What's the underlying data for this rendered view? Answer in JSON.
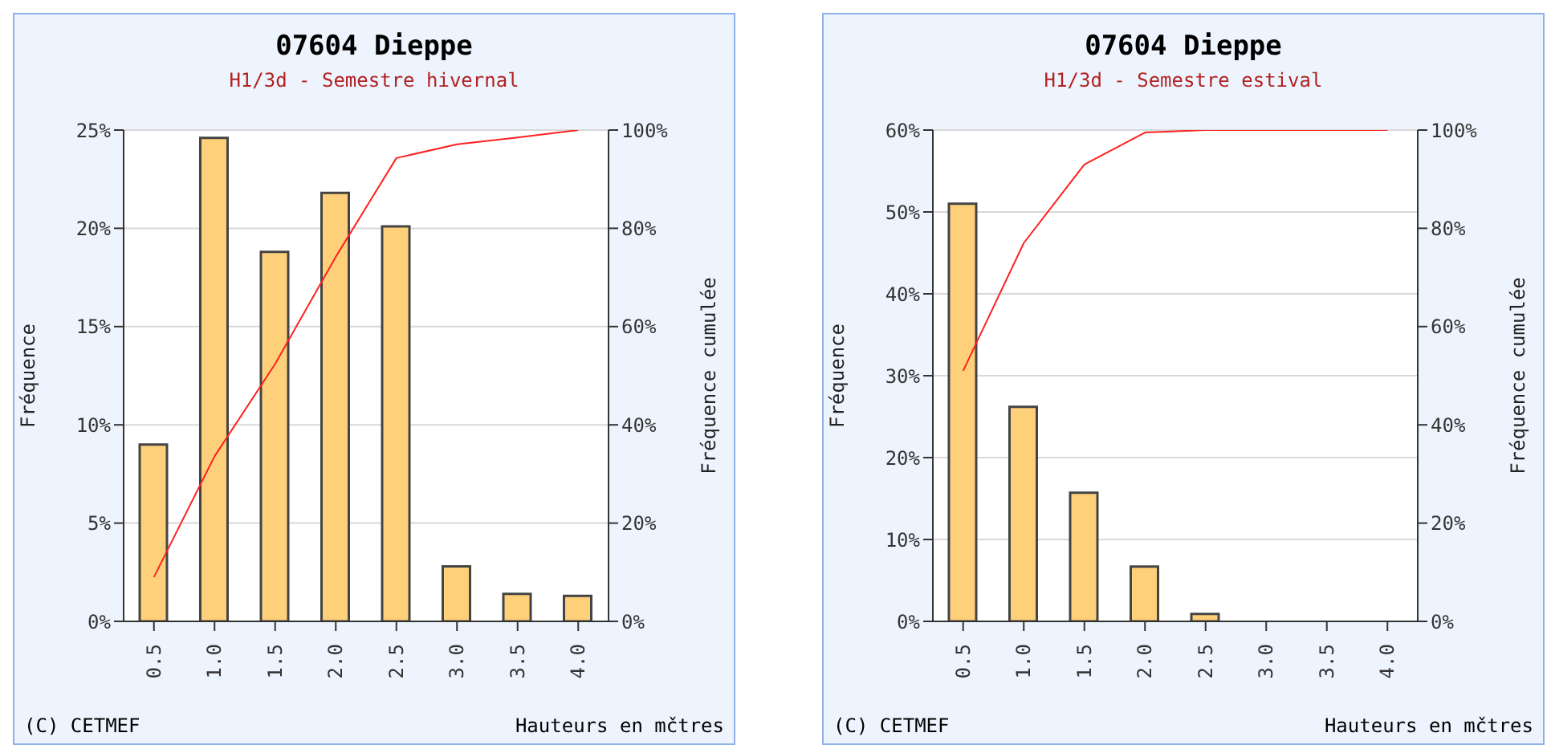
{
  "chart_data": [
    {
      "type": "bar",
      "title": "07604 Dieppe",
      "subtitle": "H1/3d - Semestre hivernal",
      "xlabel": "Hauteurs en mčtres",
      "ylabel": "Fréquence",
      "y2label": "Fréquence cumulée",
      "annotations": [
        "(C) CETMEF"
      ],
      "categories": [
        "0.5",
        "1.0",
        "1.5",
        "2.0",
        "2.5",
        "3.0",
        "3.5",
        "4.0"
      ],
      "series": [
        {
          "color": "#ffd07a",
          "values": [
            9,
            24.6,
            18.8,
            21.8,
            20.1,
            2.8,
            1.4,
            1.3
          ]
        },
        {
          "type": "line",
          "axis": "y2",
          "color": "#ff2020",
          "values": [
            9,
            33.6,
            52.4,
            74.2,
            94.3,
            97.1,
            98.5,
            100
          ]
        }
      ],
      "ylim": [
        0,
        25
      ],
      "yticks": [
        {
          "value": 0,
          "label": "0%"
        },
        {
          "value": 5,
          "label": "5%"
        },
        {
          "value": 10,
          "label": "10%"
        },
        {
          "value": 15,
          "label": "15%"
        },
        {
          "value": 20,
          "label": "20%"
        },
        {
          "value": 25,
          "label": "25%"
        }
      ],
      "y2lim": [
        0,
        100
      ],
      "y2ticks": [
        {
          "value": 0,
          "label": "0%"
        },
        {
          "value": 20,
          "label": "20%"
        },
        {
          "value": 40,
          "label": "40%"
        },
        {
          "value": 60,
          "label": "60%"
        },
        {
          "value": 80,
          "label": "80%"
        },
        {
          "value": 100,
          "label": "100%"
        }
      ],
      "grid": "y",
      "legend": false,
      "marker": "none"
    },
    {
      "type": "bar",
      "title": "07604 Dieppe",
      "subtitle": "H1/3d - Semestre estival",
      "xlabel": "Hauteurs en mčtres",
      "ylabel": "Fréquence",
      "y2label": "Fréquence cumulée",
      "annotations": [
        "(C) CETMEF"
      ],
      "categories": [
        "0.5",
        "1.0",
        "1.5",
        "2.0",
        "2.5",
        "3.0",
        "3.5",
        "4.0"
      ],
      "series": [
        {
          "color": "#ffd07a",
          "values": [
            51,
            26.2,
            15.7,
            6.7,
            0.9,
            0,
            0,
            0
          ]
        },
        {
          "type": "line",
          "axis": "y2",
          "color": "#ff2020",
          "values": [
            51,
            77,
            93,
            99.5,
            100,
            100,
            100,
            100
          ]
        }
      ],
      "ylim": [
        0,
        60
      ],
      "yticks": [
        {
          "value": 0,
          "label": "0%"
        },
        {
          "value": 10,
          "label": "10%"
        },
        {
          "value": 20,
          "label": "20%"
        },
        {
          "value": 30,
          "label": "30%"
        },
        {
          "value": 40,
          "label": "40%"
        },
        {
          "value": 50,
          "label": "50%"
        },
        {
          "value": 60,
          "label": "60%"
        }
      ],
      "y2lim": [
        0,
        100
      ],
      "y2ticks": [
        {
          "value": 0,
          "label": "0%"
        },
        {
          "value": 20,
          "label": "20%"
        },
        {
          "value": 40,
          "label": "40%"
        },
        {
          "value": 60,
          "label": "60%"
        },
        {
          "value": 80,
          "label": "80%"
        },
        {
          "value": 100,
          "label": "100%"
        }
      ],
      "grid": "y",
      "legend": false,
      "marker": "none"
    }
  ]
}
